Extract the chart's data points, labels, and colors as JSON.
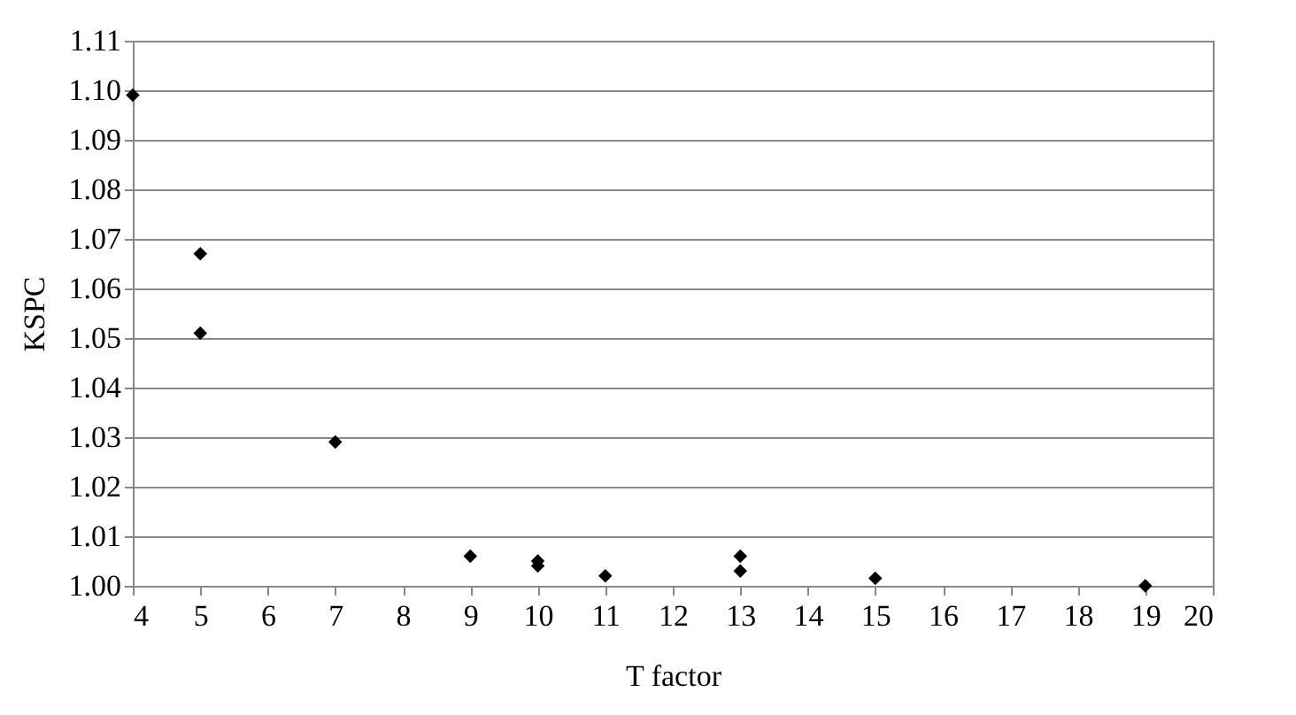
{
  "chart_data": {
    "type": "scatter",
    "xlabel": "T factor",
    "ylabel": "KSPC",
    "x": [
      4,
      5,
      5,
      7,
      9,
      10,
      10,
      11,
      13,
      13,
      15,
      19
    ],
    "values": [
      1.099,
      1.067,
      1.051,
      1.029,
      1.006,
      1.005,
      1.004,
      1.002,
      1.006,
      1.003,
      1.0015,
      1.0
    ],
    "color": "#000000",
    "marker": "diamond",
    "grid": "y",
    "xlim": [
      4,
      20
    ],
    "xticks": [
      4,
      5,
      6,
      7,
      8,
      9,
      10,
      11,
      12,
      13,
      14,
      15,
      16,
      17,
      18,
      19,
      20
    ],
    "ylim": [
      1.0,
      1.11
    ],
    "yticks": [
      {
        "value": 1,
        "label": "1.00"
      },
      1.01,
      1.02,
      1.03,
      1.04,
      1.05,
      1.06,
      1.07,
      1.08,
      1.09,
      {
        "value": 1.1,
        "label": "1.10"
      },
      1.11
    ]
  }
}
